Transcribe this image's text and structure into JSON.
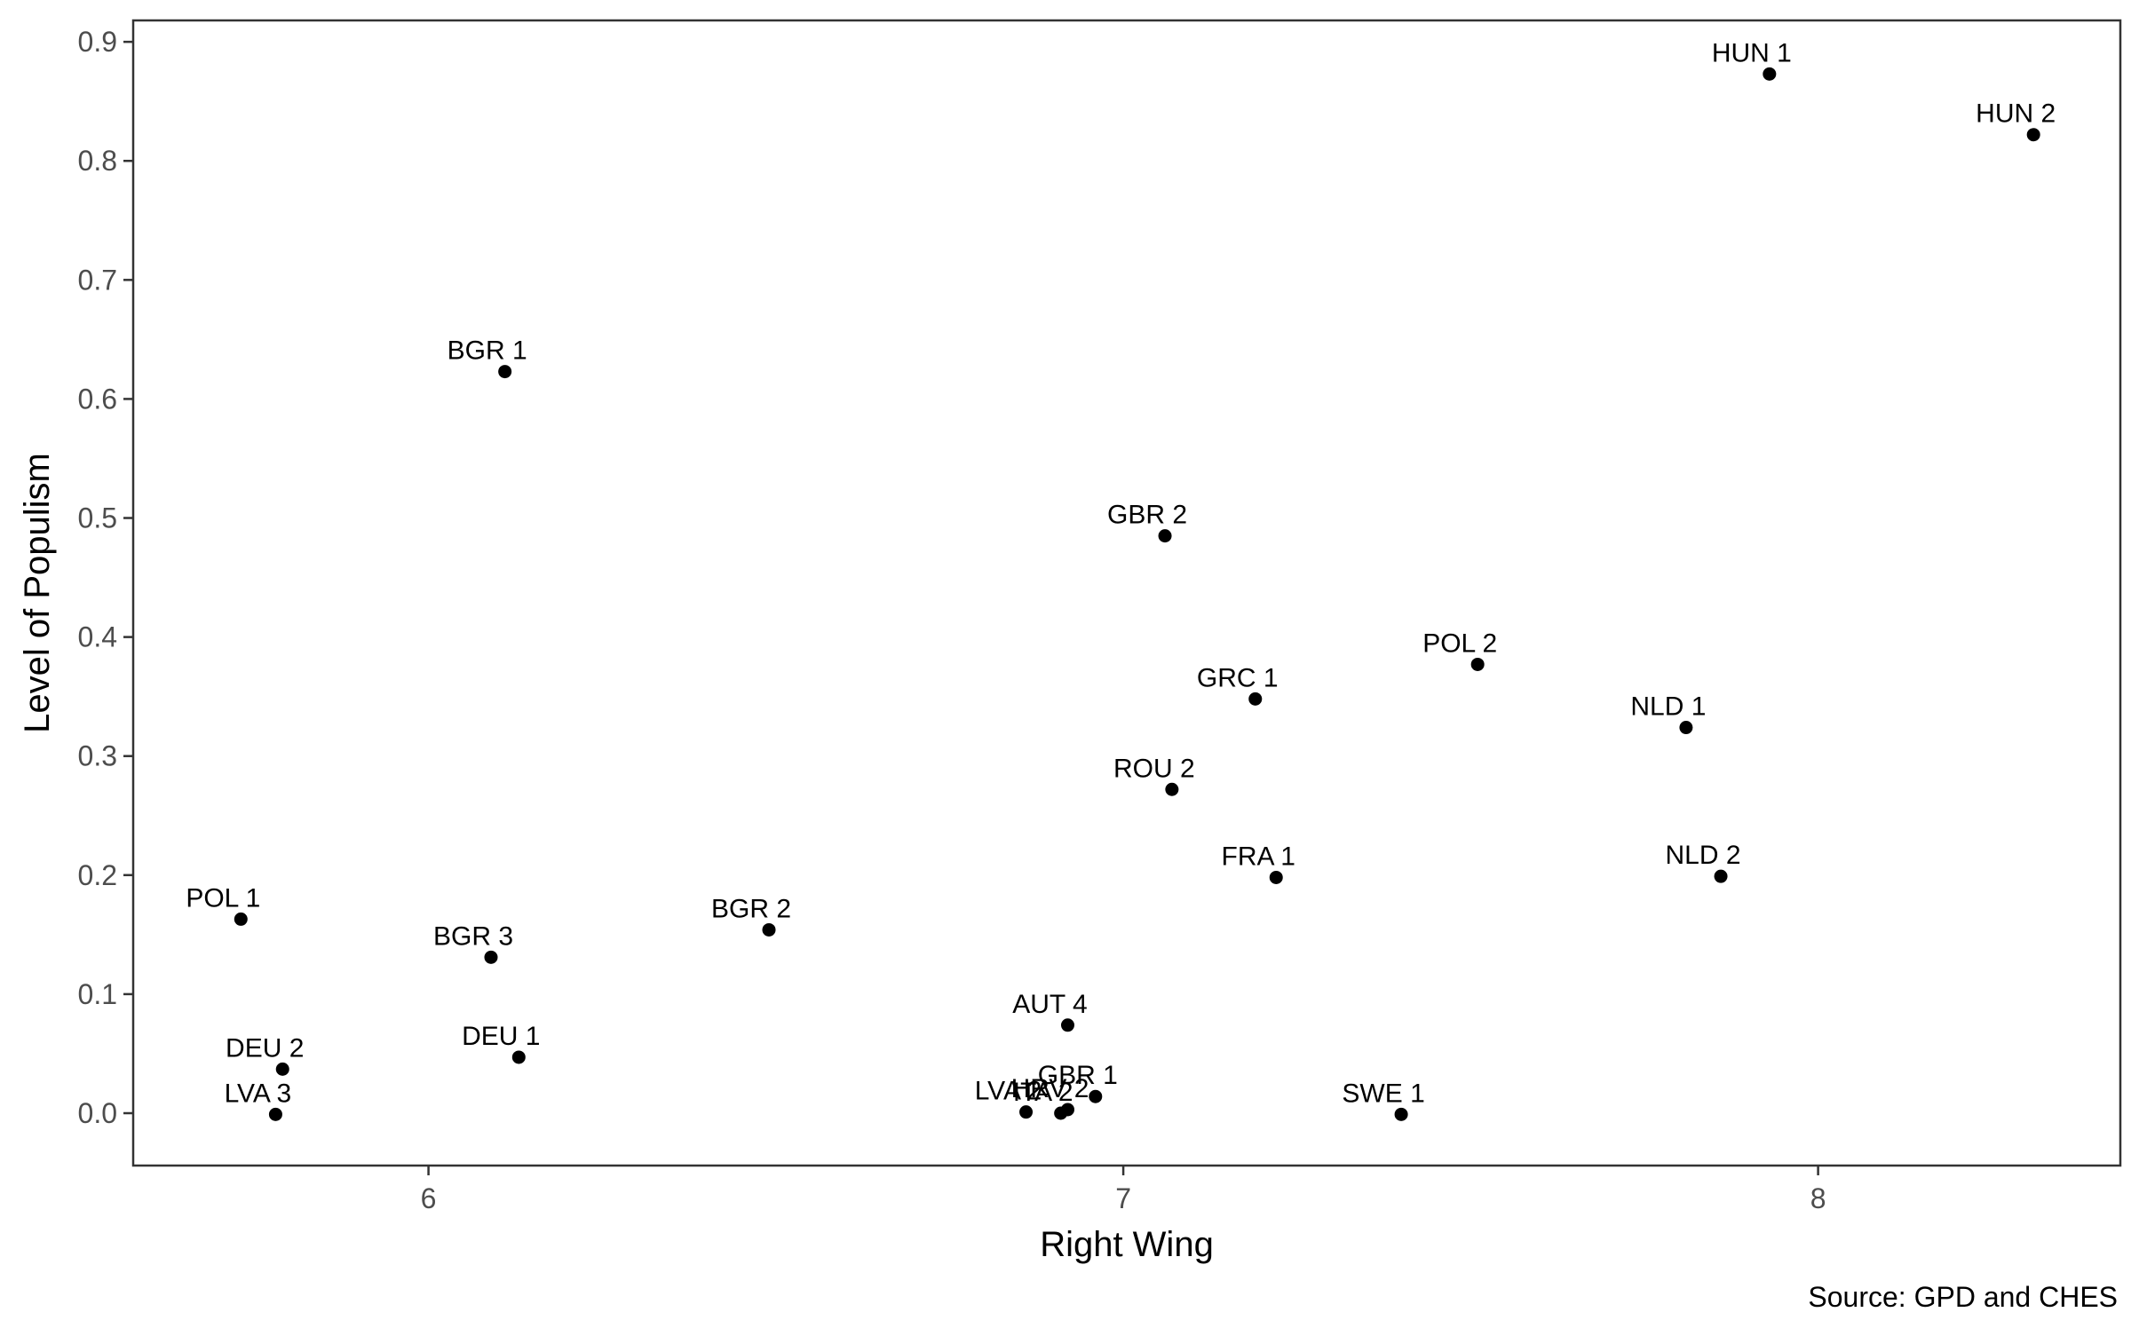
{
  "chart_data": {
    "type": "scatter",
    "xlabel": "Right Wing",
    "ylabel": "Level of Populism",
    "caption": "Source: GPD and CHES",
    "xlim": [
      5.575,
      8.435
    ],
    "ylim": [
      -0.044,
      0.918
    ],
    "xticks": [
      6,
      7,
      8
    ],
    "yticks": [
      0.0,
      0.1,
      0.2,
      0.3,
      0.4,
      0.5,
      0.6,
      0.7,
      0.8,
      0.9
    ],
    "xtick_labels": [
      "6",
      "7",
      "8"
    ],
    "ytick_labels": [
      "0.0",
      "0.1",
      "0.2",
      "0.3",
      "0.4",
      "0.5",
      "0.6",
      "0.7",
      "0.8",
      "0.9"
    ],
    "grid": false,
    "points": [
      {
        "label": "HUN 1",
        "x": 7.93,
        "y": 0.873
      },
      {
        "label": "HUN 2",
        "x": 8.31,
        "y": 0.822
      },
      {
        "label": "BGR 1",
        "x": 6.11,
        "y": 0.623
      },
      {
        "label": "GBR 2",
        "x": 7.06,
        "y": 0.485
      },
      {
        "label": "POL 2",
        "x": 7.51,
        "y": 0.377
      },
      {
        "label": "GRC 1",
        "x": 7.19,
        "y": 0.348
      },
      {
        "label": "NLD 1",
        "x": 7.81,
        "y": 0.324
      },
      {
        "label": "ROU 2",
        "x": 7.07,
        "y": 0.272
      },
      {
        "label": "FRA 1",
        "x": 7.22,
        "y": 0.198
      },
      {
        "label": "NLD 2",
        "x": 7.86,
        "y": 0.199
      },
      {
        "label": "POL 1",
        "x": 5.73,
        "y": 0.163
      },
      {
        "label": "BGR 2",
        "x": 6.49,
        "y": 0.154
      },
      {
        "label": "BGR 3",
        "x": 6.09,
        "y": 0.131
      },
      {
        "label": "AUT 4",
        "x": 6.92,
        "y": 0.074
      },
      {
        "label": "DEU 1",
        "x": 6.13,
        "y": 0.047
      },
      {
        "label": "DEU 2",
        "x": 5.79,
        "y": 0.037
      },
      {
        "label": "GBR 1",
        "x": 6.96,
        "y": 0.014
      },
      {
        "label": "LVA 3",
        "x": 5.78,
        "y": -0.001
      },
      {
        "label": "HRV 2",
        "x": 6.92,
        "y": 0.003
      },
      {
        "label": "ITA 2",
        "x": 6.91,
        "y": 0.0
      },
      {
        "label": "LVA 2",
        "x": 6.86,
        "y": 0.001
      },
      {
        "label": "SWE 1",
        "x": 7.4,
        "y": -0.001
      }
    ]
  }
}
